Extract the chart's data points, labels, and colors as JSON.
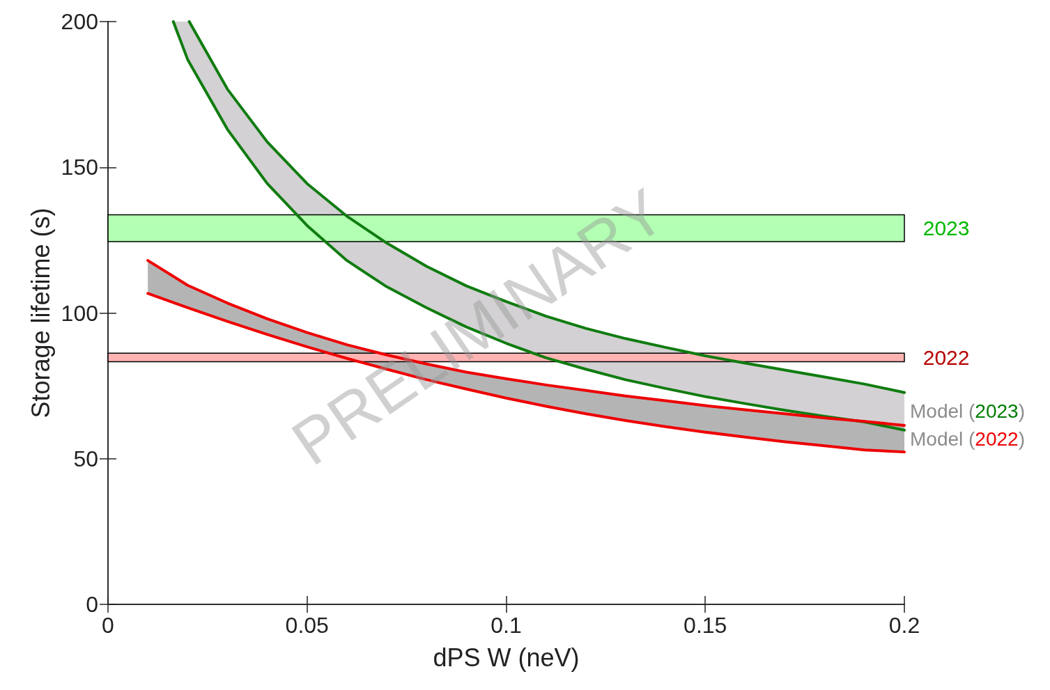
{
  "chart_data": {
    "type": "line",
    "xlabel": "dPS W (neV)",
    "ylabel": "Storage lifetime (s)",
    "xlim": [
      0,
      0.2
    ],
    "xticks": [
      0,
      0.05,
      0.1,
      0.15,
      0.2
    ],
    "ylim": [
      0,
      200
    ],
    "yticks": [
      0,
      50,
      100,
      150,
      200
    ],
    "grid": false,
    "legend": false,
    "marker": "none",
    "line_style": "solid",
    "series": [
      {
        "name": "Model (2023)",
        "color": "#107c10",
        "x": [
          0.0204,
          0.03,
          0.04,
          0.05,
          0.06,
          0.07,
          0.08,
          0.09,
          0.1,
          0.11,
          0.12,
          0.13,
          0.14,
          0.15,
          0.16,
          0.17,
          0.18,
          0.19,
          0.2
        ],
        "values": [
          200,
          176.8,
          158.7,
          144.4,
          133.2,
          124,
          116,
          109.3,
          103.9,
          98.9,
          94.7,
          91.2,
          88.2,
          85.3,
          82.8,
          80.4,
          78,
          75.6,
          72.7
        ]
      },
      {
        "color": "#107c10",
        "x": [
          0.0164,
          0.02,
          0.03,
          0.04,
          0.05,
          0.06,
          0.07,
          0.08,
          0.09,
          0.1,
          0.11,
          0.12,
          0.13,
          0.14,
          0.15,
          0.16,
          0.17,
          0.18,
          0.19,
          0.2
        ],
        "values": [
          200,
          187,
          163,
          144.4,
          130,
          118,
          109,
          101.8,
          95.2,
          89.6,
          84.6,
          80.7,
          77.1,
          74.1,
          71.3,
          68.9,
          66.6,
          64.5,
          62.6,
          59.8
        ]
      },
      {
        "name": "Model (2022)",
        "color": "#ee0000",
        "x": [
          0.01,
          0.02,
          0.03,
          0.04,
          0.05,
          0.06,
          0.07,
          0.08,
          0.09,
          0.1,
          0.11,
          0.12,
          0.13,
          0.14,
          0.15,
          0.16,
          0.17,
          0.18,
          0.19,
          0.2
        ],
        "values": [
          118,
          109.5,
          103.4,
          98,
          93.3,
          89.1,
          85.6,
          82.5,
          79.7,
          77.4,
          75.3,
          73.4,
          71.5,
          69.9,
          68.2,
          66.8,
          65.4,
          64,
          62.8,
          61.4
        ]
      },
      {
        "color": "#ee0000",
        "x": [
          0.01,
          0.02,
          0.03,
          0.04,
          0.05,
          0.06,
          0.07,
          0.08,
          0.09,
          0.1,
          0.11,
          0.12,
          0.13,
          0.14,
          0.15,
          0.16,
          0.17,
          0.18,
          0.19,
          0.2
        ],
        "values": [
          106.7,
          101.8,
          97.1,
          92.6,
          88.4,
          84.4,
          80.7,
          77.1,
          73.9,
          70.8,
          68,
          65.4,
          63.1,
          61,
          59.1,
          57.4,
          55.8,
          54.4,
          53,
          52.3
        ]
      }
    ],
    "bands": [
      {
        "axis": "y",
        "from": 124.5,
        "to": 133.7,
        "label": "2023",
        "color": "#b3ffb3"
      },
      {
        "axis": "y",
        "from": 83.3,
        "to": 86.2,
        "label": "2022",
        "color": "#ffb3b3"
      }
    ],
    "annotations": [
      "PRELIMINARY"
    ]
  }
}
